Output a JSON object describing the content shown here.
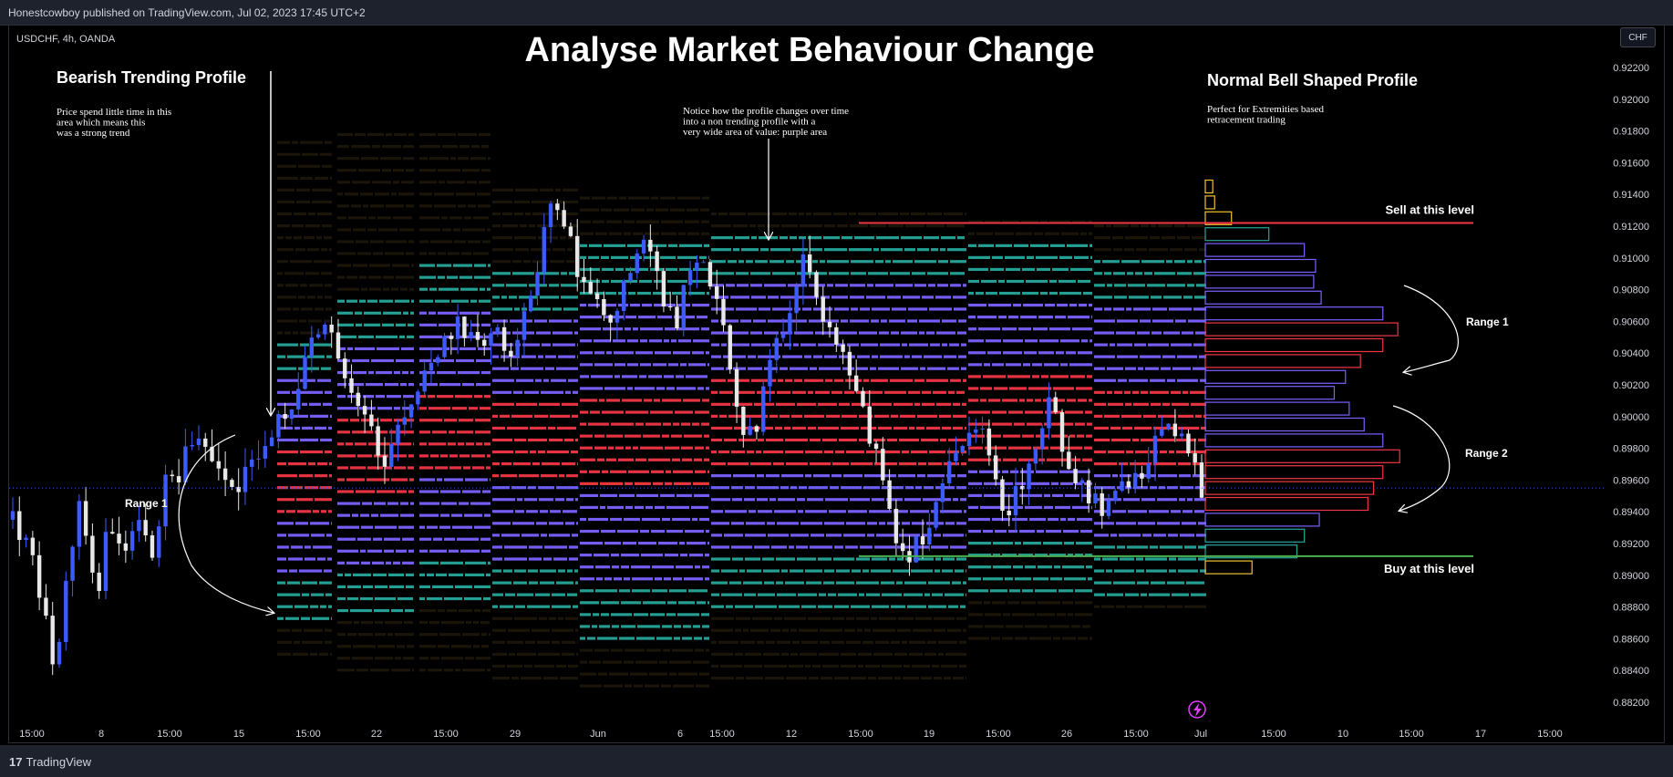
{
  "header": {
    "published": "Honestcowboy published on TradingView.com, Jul 02, 2023 17:45 UTC+2"
  },
  "footer": {
    "logo_text": "TradingView",
    "logo_mark": "17"
  },
  "chart_data": {
    "type": "candlestick",
    "symbol_label": "USDCHF, 4h, OANDA",
    "title": "Analyse Market Behaviour Change",
    "currency_button": "CHF",
    "y_ticks": [
      0.922,
      0.92,
      0.918,
      0.916,
      0.914,
      0.912,
      0.91,
      0.908,
      0.906,
      0.904,
      0.902,
      0.9,
      0.898,
      0.896,
      0.894,
      0.892,
      0.89,
      0.888,
      0.886,
      0.884,
      0.882
    ],
    "y_tick_labels": [
      "0.92200",
      "0.92000",
      "0.91800",
      "0.91600",
      "0.91400",
      "0.91200",
      "0.91000",
      "0.90800",
      "0.90600",
      "0.90400",
      "0.90200",
      "0.90000",
      "0.89800",
      "0.89600",
      "0.89400",
      "0.89200",
      "0.89000",
      "0.88800",
      "0.88600",
      "0.88400",
      "0.88200"
    ],
    "ylim": [
      0.8812,
      0.9233
    ],
    "x_tick_labels": [
      "15:00",
      "8",
      "15:00",
      "15",
      "15:00",
      "22",
      "15:00",
      "29",
      "Jun",
      "6",
      "15:00",
      "12",
      "15:00",
      "19",
      "15:00",
      "26",
      "15:00",
      "Jul",
      "15:00",
      "10",
      "15:00",
      "17",
      "15:00"
    ],
    "current_price": 0.8955,
    "price_path": [
      0.8935,
      0.892,
      0.889,
      0.884,
      0.89,
      0.895,
      0.888,
      0.8935,
      0.891,
      0.8945,
      0.89,
      0.896,
      0.8965,
      0.8985,
      0.8975,
      0.896,
      0.895,
      0.8965,
      0.8975,
      0.9,
      0.899,
      0.904,
      0.906,
      0.905,
      0.902,
      0.901,
      0.899,
      0.897,
      0.9,
      0.901,
      0.903,
      0.904,
      0.906,
      0.9055,
      0.9045,
      0.905,
      0.904,
      0.906,
      0.91,
      0.9145,
      0.912,
      0.909,
      0.907,
      0.906,
      0.908,
      0.91,
      0.911,
      0.907,
      0.906,
      0.909,
      0.91,
      0.907,
      0.902,
      0.899,
      0.9,
      0.904,
      0.905,
      0.91,
      0.908,
      0.905,
      0.904,
      0.901,
      0.899,
      0.896,
      0.892,
      0.8915,
      0.893,
      0.895,
      0.897,
      0.8985,
      0.899,
      0.896,
      0.894,
      0.896,
      0.898,
      0.901,
      0.898,
      0.896,
      0.895,
      0.894,
      0.895,
      0.896,
      0.897,
      0.9,
      0.899,
      0.8975,
      0.8955
    ],
    "volume_profile": {
      "bins": [
        0.9145,
        0.9135,
        0.9125,
        0.9115,
        0.9105,
        0.9095,
        0.9085,
        0.9075,
        0.9065,
        0.9055,
        0.9045,
        0.9035,
        0.9025,
        0.9015,
        0.9005,
        0.8995,
        0.8985,
        0.8975,
        0.8965,
        0.8955,
        0.8945,
        0.8935,
        0.8925,
        0.8915,
        0.8905
      ],
      "values": [
        4,
        5,
        14,
        34,
        53,
        59,
        58,
        62,
        95,
        103,
        95,
        83,
        75,
        69,
        77,
        85,
        95,
        104,
        95,
        90,
        87,
        61,
        53,
        49,
        25
      ],
      "colors": [
        "#f2c12e",
        "#f2c12e",
        "#f2c12e",
        "#26a69a",
        "#7b61ff",
        "#7b61ff",
        "#7b61ff",
        "#7b61ff",
        "#7b61ff",
        "#f23645",
        "#f23645",
        "#f23645",
        "#7b61ff",
        "#7b61ff",
        "#7b61ff",
        "#7b61ff",
        "#7b61ff",
        "#f23645",
        "#f23645",
        "#f23645",
        "#f23645",
        "#7b61ff",
        "#26a69a",
        "#26a69a",
        "#f2c12e"
      ]
    },
    "levels": [
      {
        "name": "sell",
        "price": 0.9122,
        "color": "#f23645",
        "label": "Sell at this level"
      },
      {
        "name": "buy",
        "price": 0.8912,
        "color": "#4caf50",
        "label": "Buy at this level"
      }
    ],
    "annotations": {
      "bearish_title": "Bearish Trending Profile",
      "bearish_text": [
        "Price spend little time in this",
        "area which means this",
        "was a strong trend"
      ],
      "notice_text": [
        "Notice how the profile changes over time",
        "into a non trending profile with a",
        "very wide area of value: purple area"
      ],
      "bell_title": "Normal Bell Shaped Profile",
      "bell_text": [
        "Perfect for Extremities based",
        "retracement trading"
      ],
      "range1_left": "Range 1",
      "range1_right": "Range 1",
      "range2_right": "Range 2"
    },
    "colors": {
      "up": "#3b5bff",
      "down": "#e8e8e8",
      "value_area": "#7b61ff",
      "poc": "#f23645",
      "low_volume": "#26a69a",
      "faint": "#f2c12e",
      "accent": "#e040fb"
    },
    "grid": false,
    "legend": "none"
  }
}
